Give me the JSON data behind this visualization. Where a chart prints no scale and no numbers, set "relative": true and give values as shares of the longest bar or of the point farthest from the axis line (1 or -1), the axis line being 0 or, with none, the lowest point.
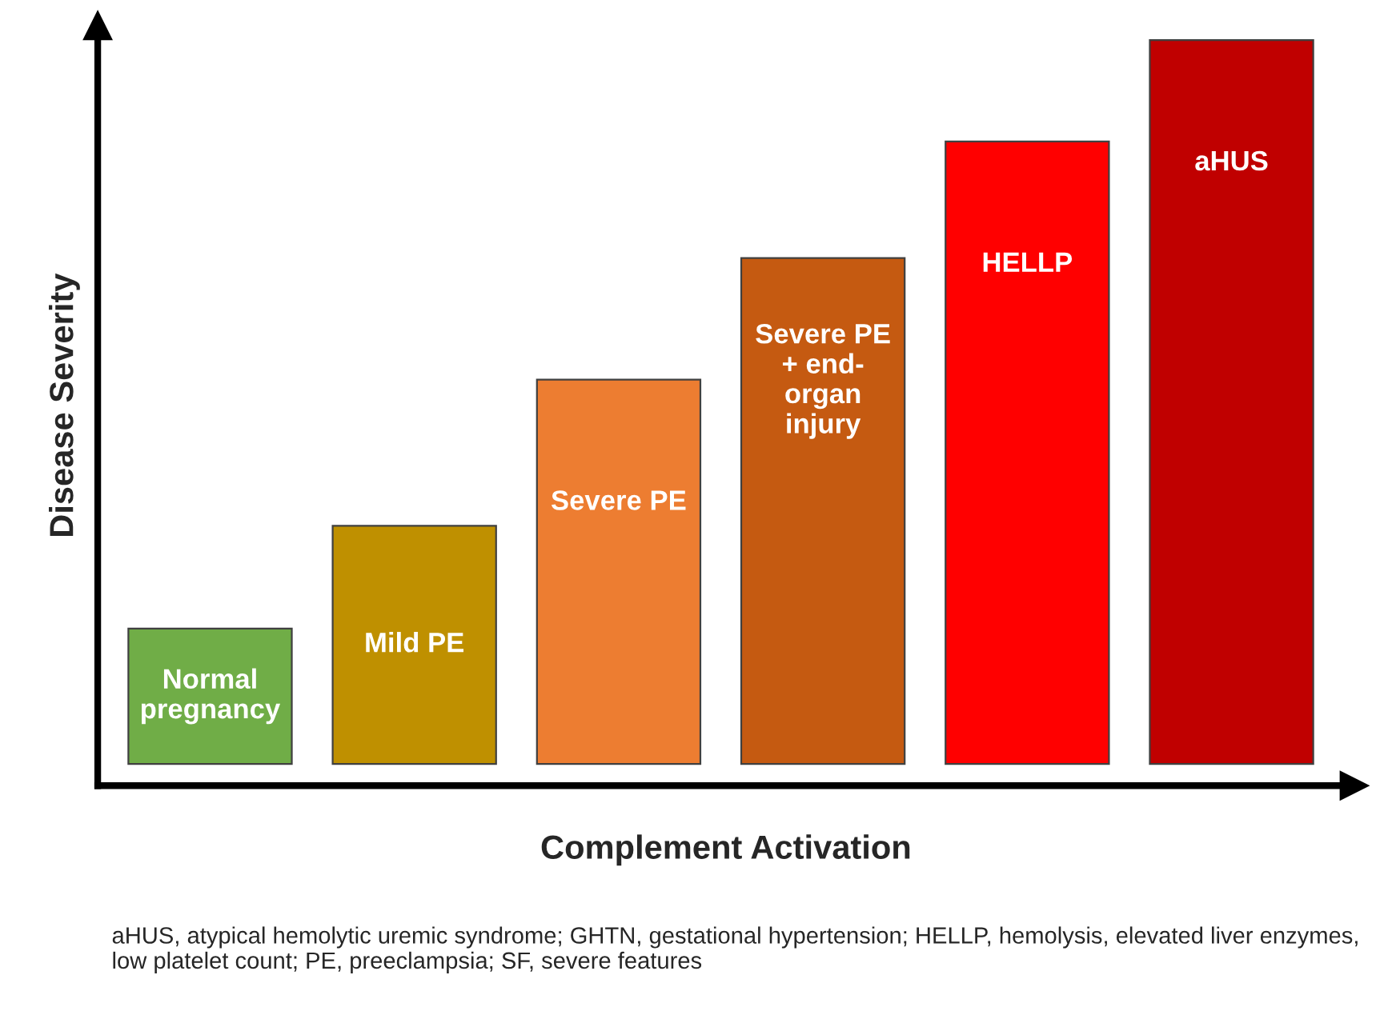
{
  "chart_data": {
    "type": "bar",
    "relative": true,
    "xlabel": "Complement Activation",
    "ylabel": "Disease Severity",
    "categories": [
      "Normal\npregnancy",
      "Mild PE",
      "Severe PE",
      "Severe PE\n+ end-\norgan\ninjury",
      "HELLP",
      "aHUS"
    ],
    "values": [
      0.187,
      0.329,
      0.531,
      0.699,
      0.86,
      1.0
    ],
    "colors": [
      "#70ad47",
      "#bf9000",
      "#ed7d31",
      "#c55a11",
      "#ff0000",
      "#c00000"
    ],
    "annotations": [
      "aHUS, atypical hemolytic uremic syndrome; GHTN, gestational hypertension; HELLP, hemolysis, elevated liver enzymes, low platelet count; PE, preeclampsia; SF, severe features"
    ]
  }
}
